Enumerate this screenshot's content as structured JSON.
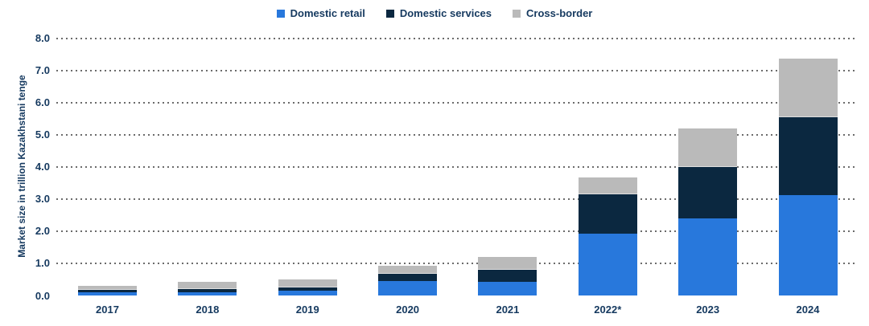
{
  "legend": {
    "items": [
      {
        "label": "Domestic retail",
        "color": "#2878DC"
      },
      {
        "label": "Domestic services",
        "color": "#0B2840"
      },
      {
        "label": "Cross-border",
        "color": "#BABABA"
      }
    ]
  },
  "chart_data": {
    "type": "bar",
    "stacked": true,
    "categories": [
      "2017",
      "2018",
      "2019",
      "2020",
      "2021",
      "2022*",
      "2023",
      "2024"
    ],
    "series": [
      {
        "name": "Domestic retail",
        "color": "#2878DC",
        "values": [
          0.1,
          0.11,
          0.15,
          0.47,
          0.43,
          1.94,
          2.4,
          3.13
        ]
      },
      {
        "name": "Domestic services",
        "color": "#0B2840",
        "values": [
          0.08,
          0.11,
          0.12,
          0.21,
          0.38,
          1.21,
          1.6,
          2.43
        ]
      },
      {
        "name": "Cross-border",
        "color": "#BABABA",
        "values": [
          0.12,
          0.21,
          0.24,
          0.26,
          0.4,
          0.53,
          1.2,
          1.82
        ]
      }
    ],
    "totals": [
      0.3,
      0.43,
      0.51,
      0.94,
      1.21,
      3.68,
      5.2,
      7.38
    ],
    "xlabel": "",
    "ylabel": "Market size in trillion Kazakhstani tenge",
    "ylim": [
      0,
      8
    ],
    "ytick_step": 1.0,
    "ytick_labels": [
      "0.0",
      "1.0",
      "2.0",
      "3.0",
      "4.0",
      "5.0",
      "6.0",
      "7.0",
      "8.0"
    ],
    "grid": "horizontal-dotted",
    "legend_position": "top-center",
    "text_color": "#15395F",
    "gridline_color": "#6b6b6b"
  }
}
